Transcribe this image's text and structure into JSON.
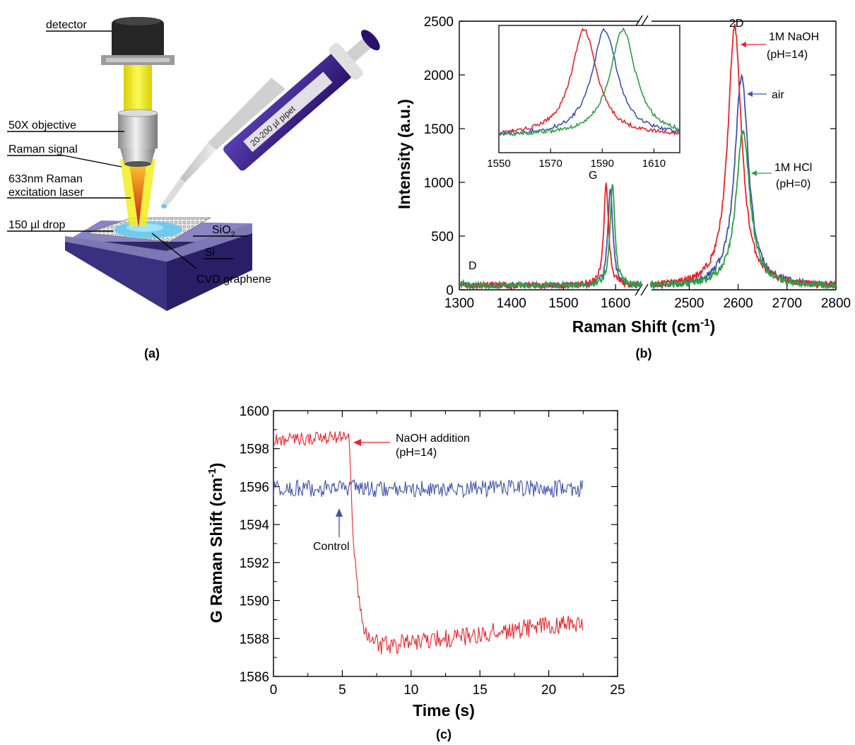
{
  "panel_a": {
    "panel_label": "(a)",
    "labels": {
      "detector": "detector",
      "objective": "50X objective",
      "raman_signal": "Raman signal",
      "laser_line1": "633nm Raman",
      "laser_line2": "excitation laser",
      "drop": "150 µl drop",
      "sio2_main": "SiO",
      "sio2_sub": "2",
      "si": "Si",
      "graphene": "CVD graphene",
      "pipet": "20-200 µl pipet"
    },
    "colors": {
      "laser_beam": "#f2ef20",
      "laser_core": "#e23a12",
      "drop": "#6cc9ef",
      "pipet_body": "#3b1f8c",
      "substrate": "#3a2f80"
    }
  },
  "panel_b": {
    "panel_label": "(b)",
    "chart_data": {
      "type": "line",
      "xlabel_main": "Raman Shift (cm",
      "xlabel_sup": "-1",
      "xlabel_end": ")",
      "ylabel": "Intensity (a.u.)",
      "ylim": [
        0,
        2500
      ],
      "yticks": [
        "0",
        "500",
        "1000",
        "1500",
        "2000",
        "2500"
      ],
      "x_broken_axis": {
        "left_range": [
          1300,
          1650
        ],
        "right_range": [
          2420,
          2800
        ],
        "left_ticks": [
          "1300",
          "1400",
          "1500",
          "1600"
        ],
        "right_ticks": [
          "2500",
          "2600",
          "2700",
          "2800"
        ]
      },
      "peak_labels": {
        "D": "D",
        "G": "G",
        "2D": "2D"
      },
      "series": [
        {
          "name": "1M NaOH",
          "name2": "(pH=14)",
          "color": "#e8242a",
          "D_intensity": 40,
          "G_position": 1582,
          "G_intensity": 940,
          "2D_position": 2593,
          "2D_intensity": 2420
        },
        {
          "name": "air",
          "name2": "",
          "color": "#3f55a8",
          "D_intensity": 40,
          "G_position": 1590,
          "G_intensity": 920,
          "2D_position": 2607,
          "2D_intensity": 1960
        },
        {
          "name": "1M HCl",
          "name2": "(pH=0)",
          "color": "#2ea043",
          "D_intensity": 40,
          "G_position": 1594,
          "G_intensity": 930,
          "2D_position": 2610,
          "2D_intensity": 1450
        }
      ],
      "inset": {
        "xlim": [
          1550,
          1620
        ],
        "xticks": [
          "1550",
          "1570",
          "1590",
          "1610"
        ],
        "series_peaks": [
          {
            "color": "#e8242a",
            "center": 1583,
            "peak": 1.0
          },
          {
            "color": "#3f55a8",
            "center": 1591,
            "peak": 1.0
          },
          {
            "color": "#2ea043",
            "center": 1598,
            "peak": 1.0
          }
        ]
      }
    }
  },
  "panel_c": {
    "panel_label": "(c)",
    "chart_data": {
      "type": "line",
      "xlabel": "Time (s)",
      "ylabel_main": "G Raman Shift (cm",
      "ylabel_sup": "-1",
      "ylabel_end": ")",
      "xlim": [
        0,
        25
      ],
      "ylim": [
        1586,
        1600
      ],
      "xticks": [
        "0",
        "5",
        "10",
        "15",
        "20",
        "25"
      ],
      "yticks": [
        "1586",
        "1588",
        "1590",
        "1592",
        "1594",
        "1596",
        "1598",
        "1600"
      ],
      "series": [
        {
          "name": "NaOH addition",
          "name2": "(pH=14)",
          "color": "#e8242a",
          "before_level": 1598.4,
          "drop_time": 5.5,
          "min_level": 1587.6,
          "end_level": 1588.9,
          "t_end": 22.5
        },
        {
          "name": "Control",
          "color": "#3f55a8",
          "level": 1595.9,
          "t_end": 22.5
        }
      ]
    }
  }
}
